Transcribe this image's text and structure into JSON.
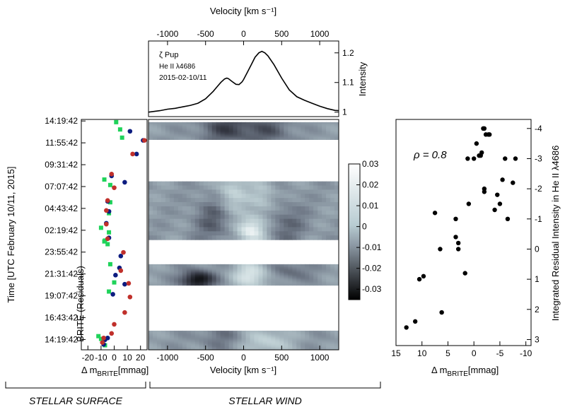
{
  "chart_data": [
    {
      "type": "scatter",
      "panel": "brite-residuals",
      "xlabel_main": "Δ m",
      "xlabel_sub": "BRITE",
      "xlabel_unit": "[mmag]",
      "ylabel": "Time [UTC February 10/11, 2015]",
      "inner_label": "BRITE (Residuals)",
      "xlim": [
        -25,
        25
      ],
      "x_ticks": [
        -20,
        -10,
        0,
        10,
        20
      ],
      "y_ticks": [
        "14:19:42",
        "11:55:42",
        "09:31:42",
        "07:07:42",
        "04:43:42",
        "02:19:42",
        "23:55:42",
        "21:31:42",
        "19:07:42",
        "16:43:42",
        "14:19:42"
      ],
      "y_ticks_hours": [
        38.33,
        35.93,
        33.53,
        31.13,
        28.73,
        26.33,
        23.93,
        21.53,
        19.13,
        16.73,
        14.33
      ],
      "ylim_hours": [
        13.2,
        38.5
      ],
      "series": [
        {
          "color": "#1fd35a",
          "marker": "square",
          "points": [
            [
              1.5,
              38.2
            ],
            [
              4.5,
              37.4
            ],
            [
              6,
              36.5
            ],
            [
              -7.5,
              31.9
            ],
            [
              -3,
              31.3
            ],
            [
              -3,
              29.4
            ],
            [
              -4,
              28.2
            ],
            [
              -10,
              26.6
            ],
            [
              -4,
              26.1
            ],
            [
              -7,
              25.2
            ],
            [
              -7.5,
              25.1
            ],
            [
              -5,
              24.8
            ],
            [
              -3,
              22.6
            ],
            [
              0,
              20.6
            ],
            [
              -4,
              19.6
            ],
            [
              -12,
              14.7
            ],
            [
              -10,
              14.4
            ],
            [
              -7,
              13.7
            ]
          ]
        },
        {
          "color": "#0d1c80",
          "marker": "circle",
          "points": [
            [
              12,
              37.2
            ],
            [
              22,
              36.2
            ],
            [
              17,
              34.7
            ],
            [
              -2,
              32.3
            ],
            [
              8,
              31.6
            ],
            [
              -5,
              29.5
            ],
            [
              -4,
              28.4
            ],
            [
              -6,
              27.1
            ],
            [
              -4,
              25.5
            ],
            [
              5,
              23.5
            ],
            [
              4,
              22.2
            ],
            [
              1,
              21.4
            ],
            [
              8,
              20.4
            ],
            [
              -1,
              19.3
            ],
            [
              -5,
              14.5
            ],
            [
              -7,
              14.3
            ],
            [
              -8,
              13.8
            ]
          ]
        },
        {
          "color": "#c0302b",
          "marker": "circle",
          "points": [
            [
              23,
              36.2
            ],
            [
              14,
              34.7
            ],
            [
              -2,
              32.5
            ],
            [
              0,
              31.0
            ],
            [
              -5,
              29.6
            ],
            [
              -6,
              28.5
            ],
            [
              -6,
              27.0
            ],
            [
              -5,
              25.4
            ],
            [
              7,
              23.9
            ],
            [
              5,
              21.9
            ],
            [
              11,
              20.5
            ],
            [
              12,
              19.0
            ],
            [
              8,
              17.3
            ],
            [
              0,
              16.0
            ],
            [
              -2,
              15.0
            ],
            [
              -8,
              14.5
            ],
            [
              -9,
              14.0
            ]
          ]
        }
      ]
    },
    {
      "type": "line",
      "panel": "line-profile",
      "inner_text": [
        "ζ Pup",
        "He II λ4686",
        "2015-02-10/11"
      ],
      "xlabel_top": "Velocity [km s⁻¹]",
      "ylabel": "Intensity",
      "xlim": [
        -1250,
        1250
      ],
      "ylim": [
        0.985,
        1.24
      ],
      "x_ticks": [
        -1000,
        -500,
        0,
        500,
        1000
      ],
      "y_ticks": [
        "1",
        "1.1",
        "1.2"
      ],
      "y_tick_values": [
        1.0,
        1.1,
        1.2
      ],
      "x": [
        -1250,
        -1100,
        -1000,
        -900,
        -800,
        -700,
        -600,
        -500,
        -400,
        -350,
        -300,
        -250,
        -220,
        -200,
        -150,
        -100,
        -60,
        -20,
        0,
        50,
        100,
        150,
        200,
        240,
        280,
        320,
        400,
        500,
        600,
        700,
        800,
        900,
        1000,
        1100,
        1200,
        1250
      ],
      "y": [
        1.0,
        1.005,
        1.01,
        1.013,
        1.018,
        1.023,
        1.03,
        1.045,
        1.07,
        1.085,
        1.1,
        1.112,
        1.115,
        1.113,
        1.103,
        1.094,
        1.093,
        1.102,
        1.11,
        1.135,
        1.16,
        1.185,
        1.2,
        1.205,
        1.2,
        1.19,
        1.16,
        1.115,
        1.075,
        1.052,
        1.04,
        1.03,
        1.02,
        1.012,
        1.006,
        1.005
      ]
    },
    {
      "type": "heatmap",
      "panel": "dynamic-residual-spectrum",
      "xlabel": "Velocity [km s⁻¹]",
      "xlim": [
        -1250,
        1250
      ],
      "x_ticks": [
        -1000,
        -500,
        0,
        500,
        1000
      ],
      "ylim_hours": [
        13.2,
        38.5
      ],
      "colorbar": {
        "min": -0.035,
        "max": 0.03,
        "ticks": [
          "0.03",
          "0.02",
          "0.01",
          "0",
          "-0.01",
          "-0.02",
          "-0.03"
        ],
        "tick_values": [
          0.03,
          0.02,
          0.01,
          0.0,
          -0.01,
          -0.02,
          -0.03
        ]
      },
      "data_bands_hours": [
        [
          36.3,
          38.2
        ],
        [
          25.3,
          31.7
        ],
        [
          20.3,
          22.6
        ],
        [
          13.2,
          15.3
        ]
      ],
      "features": [
        {
          "v": -200,
          "t": 37.5,
          "a": -0.018,
          "sv": 250,
          "st": 1.2
        },
        {
          "v": 350,
          "t": 37.3,
          "a": -0.012,
          "sv": 200,
          "st": 1.2
        },
        {
          "v": 100,
          "t": 26.3,
          "a": 0.028,
          "sv": 130,
          "st": 1.0
        },
        {
          "v": -150,
          "t": 30.5,
          "a": 0.016,
          "sv": 130,
          "st": 1.6
        },
        {
          "v": 250,
          "t": 29.8,
          "a": 0.012,
          "sv": 130,
          "st": 1.5
        },
        {
          "v": -400,
          "t": 27.5,
          "a": -0.012,
          "sv": 180,
          "st": 1.8
        },
        {
          "v": 550,
          "t": 27.0,
          "a": -0.01,
          "sv": 200,
          "st": 1.8
        },
        {
          "v": -600,
          "t": 20.9,
          "a": -0.032,
          "sv": 150,
          "st": 0.7
        },
        {
          "v": 100,
          "t": 21.4,
          "a": 0.022,
          "sv": 170,
          "st": 1.0
        },
        {
          "v": 600,
          "t": 21.8,
          "a": -0.01,
          "sv": 200,
          "st": 0.8
        },
        {
          "v": 300,
          "t": 14.1,
          "a": 0.015,
          "sv": 220,
          "st": 1.0
        },
        {
          "v": -300,
          "t": 14.6,
          "a": -0.008,
          "sv": 220,
          "st": 1.0
        }
      ]
    },
    {
      "type": "scatter",
      "panel": "correlation",
      "xlabel_main": "Δ m",
      "xlabel_sub": "BRITE",
      "xlabel_unit": "[mmag]",
      "ylabel": "Integrated Residual Intensity in He II λ4686",
      "annotation": "ρ = 0.8",
      "xlim": [
        15,
        -11
      ],
      "ylim": [
        3.2,
        -4.3
      ],
      "x_ticks": [
        15,
        10,
        5,
        0,
        -5,
        -10
      ],
      "x_tick_labels": [
        "15",
        "10",
        "5",
        "0",
        "-5",
        "-10"
      ],
      "y_ticks": [
        -4,
        -3,
        -2,
        -1,
        0,
        1,
        2,
        3
      ],
      "y_tick_labels": [
        "-4",
        "-3",
        "-2",
        "-1",
        "0",
        "1",
        "2",
        "3"
      ],
      "points": [
        [
          13,
          2.6
        ],
        [
          11.3,
          2.4
        ],
        [
          10.5,
          1.0
        ],
        [
          9.7,
          0.9
        ],
        [
          7.5,
          -1.2
        ],
        [
          6.5,
          0
        ],
        [
          6.2,
          2.1
        ],
        [
          3.5,
          -0.4
        ],
        [
          3.5,
          -1.0
        ],
        [
          3,
          0
        ],
        [
          3,
          -0.2
        ],
        [
          1.7,
          0.8
        ],
        [
          1,
          -1.5
        ],
        [
          1.2,
          -3.0
        ],
        [
          0,
          -3.0
        ],
        [
          -0.5,
          -3.5
        ],
        [
          -1,
          -3.1
        ],
        [
          -1.3,
          -3.1
        ],
        [
          -1.5,
          -3.2
        ],
        [
          -1.8,
          -4.0
        ],
        [
          -2,
          -1.9
        ],
        [
          -2,
          -2.0
        ],
        [
          -2.3,
          -3.8
        ],
        [
          -2,
          -4.0
        ],
        [
          -2.8,
          -3.8
        ],
        [
          -3,
          -3.8
        ],
        [
          -4,
          -1.3
        ],
        [
          -4.5,
          -1.8
        ],
        [
          -5,
          -1.5
        ],
        [
          -5.5,
          -2.3
        ],
        [
          -6,
          -3.0
        ],
        [
          -6.5,
          -1.0
        ],
        [
          -7.5,
          -2.2
        ],
        [
          -8,
          -3.0
        ]
      ]
    }
  ],
  "section_labels": {
    "left": "STELLAR SURFACE",
    "right": "STELLAR WIND"
  }
}
